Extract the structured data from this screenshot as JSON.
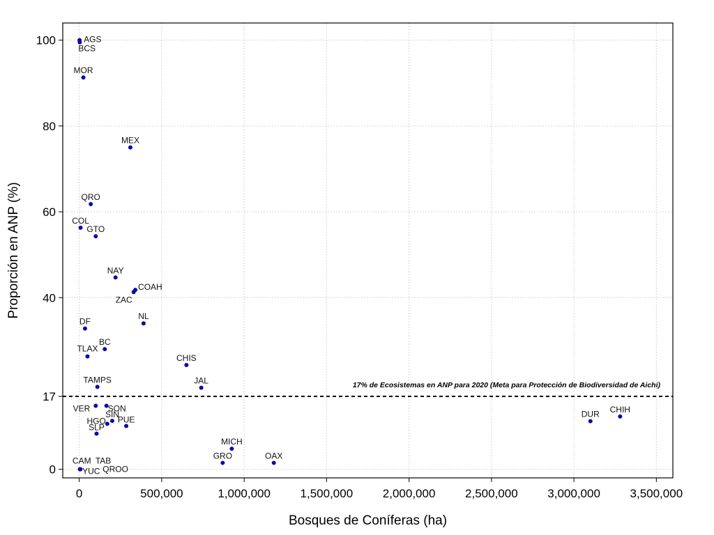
{
  "chart_data": {
    "type": "scatter",
    "xlabel": "Bosques de Coníferas (ha)",
    "ylabel": "Proporción en ANP (%)",
    "xlim": [
      -100000,
      3600000
    ],
    "ylim": [
      -2,
      104
    ],
    "x_ticks": [
      0,
      500000,
      1000000,
      1500000,
      2000000,
      2500000,
      3000000,
      3500000
    ],
    "x_tick_labels": [
      "0",
      "500,000",
      "1,000,000",
      "1,500,000",
      "2,000,000",
      "2,500,000",
      "3,000,000",
      "3,500,000"
    ],
    "y_ticks": [
      0,
      17,
      40,
      60,
      80,
      100
    ],
    "y_tick_labels": [
      "0",
      "17",
      "40",
      "60",
      "80",
      "100"
    ],
    "grid": true,
    "marker_color": "#0a0aa8",
    "reference_line": {
      "y": 17,
      "label": "17% de Ecosistemas en ANP para 2020 (Meta para Protección de Biodiversidad de Aichi)"
    },
    "points": [
      {
        "label": "AGS",
        "x": 2000,
        "y": 100.0,
        "anchor": "start",
        "dx": 6,
        "dy": 3
      },
      {
        "label": "BCS",
        "x": 3000,
        "y": 99.5,
        "anchor": "start",
        "dx": -2,
        "dy": 13
      },
      {
        "label": "MOR",
        "x": 25000,
        "y": 91.3,
        "anchor": "middle",
        "dx": 0,
        "dy": -6
      },
      {
        "label": "MEX",
        "x": 310000,
        "y": 75.0,
        "anchor": "middle",
        "dx": 0,
        "dy": -6
      },
      {
        "label": "QRO",
        "x": 70000,
        "y": 61.8,
        "anchor": "middle",
        "dx": 0,
        "dy": -6
      },
      {
        "label": "COL",
        "x": 8000,
        "y": 56.3,
        "anchor": "middle",
        "dx": 0,
        "dy": -6
      },
      {
        "label": "GTO",
        "x": 100000,
        "y": 54.3,
        "anchor": "middle",
        "dx": 0,
        "dy": -6
      },
      {
        "label": "NAY",
        "x": 220000,
        "y": 44.7,
        "anchor": "middle",
        "dx": 0,
        "dy": -6
      },
      {
        "label": "COAH",
        "x": 340000,
        "y": 41.8,
        "anchor": "start",
        "dx": 4,
        "dy": 0
      },
      {
        "label": "ZAC",
        "x": 330000,
        "y": 41.3,
        "anchor": "end",
        "dx": -2,
        "dy": 15
      },
      {
        "label": "NL",
        "x": 390000,
        "y": 34.0,
        "anchor": "middle",
        "dx": 0,
        "dy": -6
      },
      {
        "label": "DF",
        "x": 35000,
        "y": 32.8,
        "anchor": "middle",
        "dx": 0,
        "dy": -6
      },
      {
        "label": "BC",
        "x": 155000,
        "y": 28.0,
        "anchor": "middle",
        "dx": 0,
        "dy": -6
      },
      {
        "label": "TLAX",
        "x": 50000,
        "y": 26.3,
        "anchor": "middle",
        "dx": 0,
        "dy": -7
      },
      {
        "label": "CHIS",
        "x": 650000,
        "y": 24.3,
        "anchor": "middle",
        "dx": 0,
        "dy": -6
      },
      {
        "label": "TAMPS",
        "x": 110000,
        "y": 19.2,
        "anchor": "middle",
        "dx": 0,
        "dy": -6
      },
      {
        "label": "JAL",
        "x": 740000,
        "y": 19.0,
        "anchor": "middle",
        "dx": 0,
        "dy": -6
      },
      {
        "label": "VER",
        "x": 100000,
        "y": 14.8,
        "anchor": "end",
        "dx": -8,
        "dy": 8
      },
      {
        "label": "SON",
        "x": 165000,
        "y": 14.8,
        "anchor": "start",
        "dx": 2,
        "dy": 8
      },
      {
        "label": "SIN",
        "x": 200000,
        "y": 11.3,
        "anchor": "middle",
        "dx": 0,
        "dy": -5
      },
      {
        "label": "HGO",
        "x": 170000,
        "y": 10.6,
        "anchor": "end",
        "dx": -2,
        "dy": 0
      },
      {
        "label": "PUE",
        "x": 285000,
        "y": 10.1,
        "anchor": "middle",
        "dx": 0,
        "dy": -5
      },
      {
        "label": "SLP",
        "x": 105000,
        "y": 8.3,
        "anchor": "middle",
        "dx": 0,
        "dy": -5
      },
      {
        "label": "MICH",
        "x": 925000,
        "y": 4.8,
        "anchor": "middle",
        "dx": 0,
        "dy": -6
      },
      {
        "label": "GRO",
        "x": 870000,
        "y": 1.5,
        "anchor": "middle",
        "dx": 0,
        "dy": -6
      },
      {
        "label": "OAX",
        "x": 1180000,
        "y": 1.5,
        "anchor": "middle",
        "dx": 0,
        "dy": -6
      },
      {
        "label": "DUR",
        "x": 3100000,
        "y": 11.2,
        "anchor": "middle",
        "dx": 0,
        "dy": -6
      },
      {
        "label": "CHIH",
        "x": 3280000,
        "y": 12.3,
        "anchor": "middle",
        "dx": 0,
        "dy": -6
      },
      {
        "label": "CAM",
        "x": 4000,
        "y": 0.0,
        "anchor": "end",
        "dx": 16,
        "dy": -8
      },
      {
        "label": "TAB",
        "x": 5000,
        "y": 0.0,
        "anchor": "start",
        "dx": 22,
        "dy": -8
      },
      {
        "label": "YUC",
        "x": 6000,
        "y": 0.0,
        "anchor": "start",
        "dx": 3,
        "dy": 7
      },
      {
        "label": "QROO",
        "x": 7000,
        "y": 0.0,
        "anchor": "start",
        "dx": 32,
        "dy": 4
      }
    ]
  }
}
